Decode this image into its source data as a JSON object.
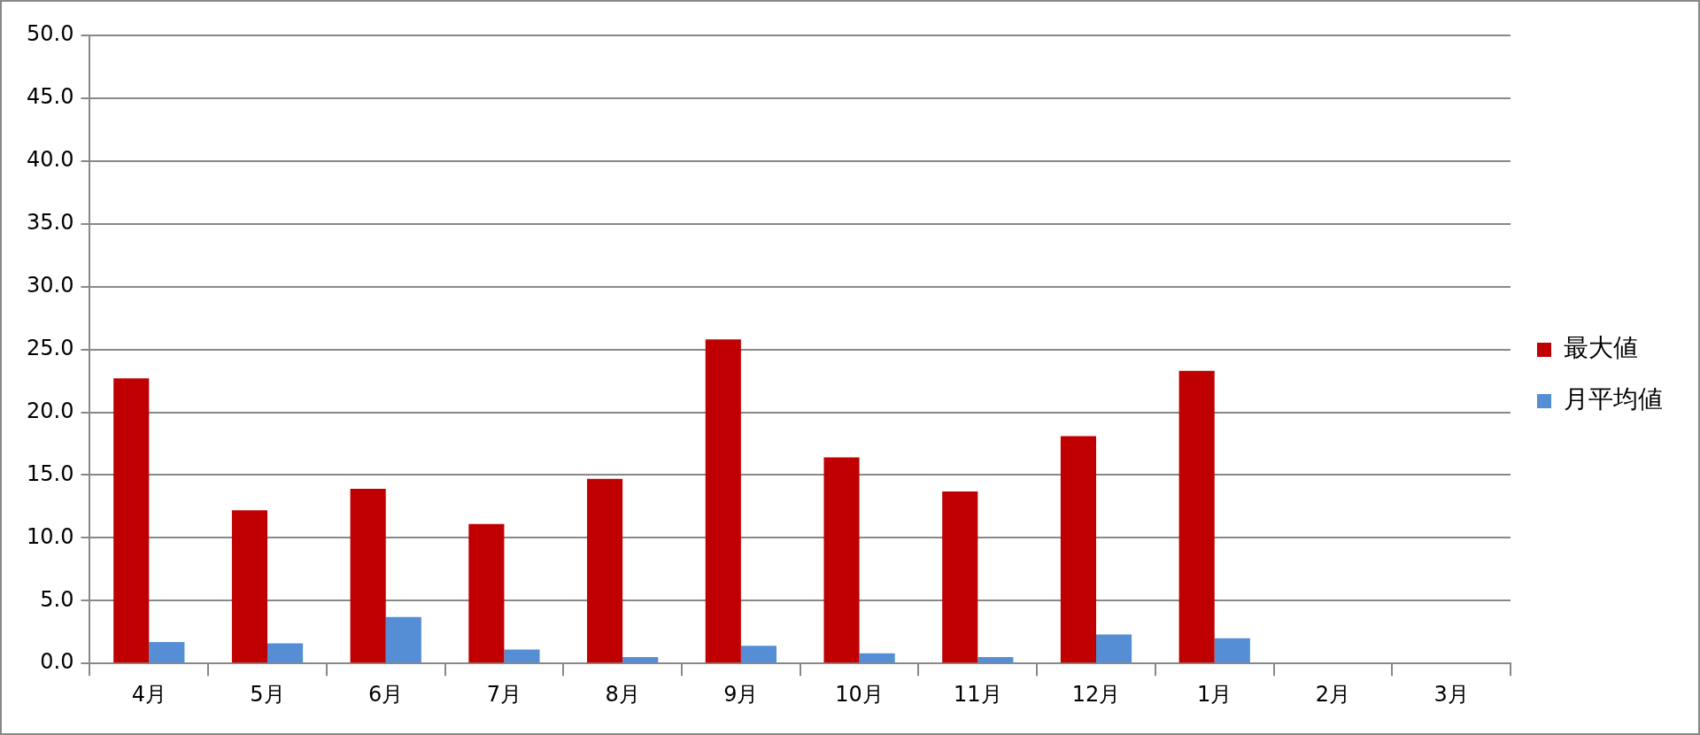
{
  "chart_data": {
    "type": "bar",
    "categories": [
      "4月",
      "5月",
      "6月",
      "7月",
      "8月",
      "9月",
      "10月",
      "11月",
      "12月",
      "1月",
      "2月",
      "3月"
    ],
    "series": [
      {
        "name": "最大値",
        "color": "#c00000",
        "values": [
          22.7,
          12.2,
          13.9,
          11.1,
          14.7,
          25.8,
          16.4,
          13.7,
          18.1,
          23.3,
          null,
          null
        ]
      },
      {
        "name": "月平均値",
        "color": "#558ed5",
        "values": [
          1.7,
          1.6,
          3.7,
          1.1,
          0.5,
          1.4,
          0.8,
          0.5,
          2.3,
          2.0,
          null,
          null
        ]
      }
    ],
    "ylim": [
      0,
      50
    ],
    "yticks": [
      {
        "value": 0,
        "label": "0.0"
      },
      {
        "value": 5,
        "label": "5.0"
      },
      {
        "value": 10,
        "label": "10.0"
      },
      {
        "value": 15,
        "label": "15.0"
      },
      {
        "value": 20,
        "label": "20.0"
      },
      {
        "value": 25,
        "label": "25.0"
      },
      {
        "value": 30,
        "label": "30.0"
      },
      {
        "value": 35,
        "label": "35.0"
      },
      {
        "value": 40,
        "label": "40.0"
      },
      {
        "value": 45,
        "label": "45.0"
      },
      {
        "value": 50,
        "label": "50.0"
      }
    ],
    "grid": "y",
    "legend": "right"
  }
}
